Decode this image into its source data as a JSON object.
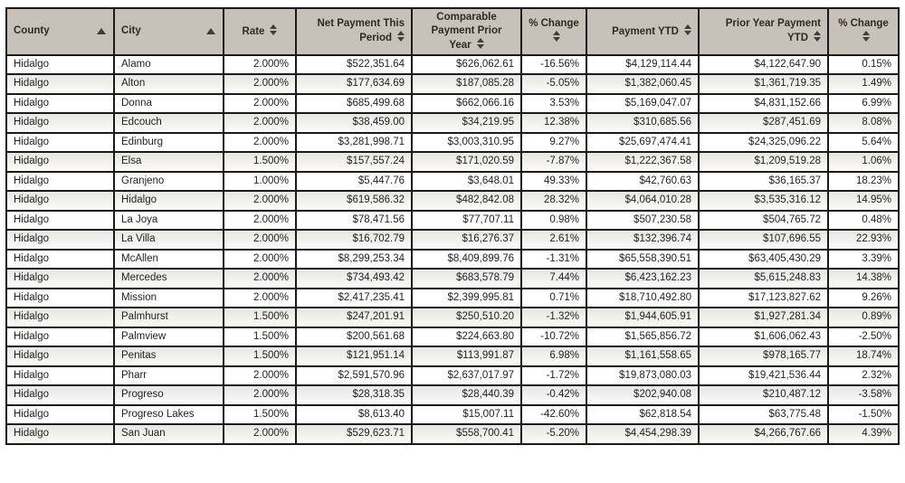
{
  "colors": {
    "header_bg": "#c8c1b9",
    "border": "#1a1a1a",
    "header_text": "#2d2a25",
    "cell_text": "#1f1f1f",
    "alt_row_top": "#e9e6e2",
    "alt_row_bottom": "#f8f7f5",
    "sort_icon": "#3c3c3c",
    "page_bg": "#ffffff"
  },
  "table": {
    "columns": [
      {
        "id": "county",
        "label": "County",
        "sort": "asc"
      },
      {
        "id": "city",
        "label": "City",
        "sort": "asc"
      },
      {
        "id": "rate",
        "label": "Rate",
        "sort": "both"
      },
      {
        "id": "net-payment-this-period",
        "label": "Net Payment This Period",
        "sort": "both"
      },
      {
        "id": "comparable-payment-prior-year",
        "label": "Comparable Payment Prior Year",
        "sort": "both"
      },
      {
        "id": "pct-change-period",
        "label": "% Change",
        "sort": "both"
      },
      {
        "id": "payment-ytd",
        "label": "Payment YTD",
        "sort": "both"
      },
      {
        "id": "prior-year-payment-ytd",
        "label": "Prior Year Payment YTD",
        "sort": "both"
      },
      {
        "id": "pct-change-ytd",
        "label": "% Change",
        "sort": "both"
      }
    ],
    "rows": [
      [
        "Hidalgo",
        "Alamo",
        "2.000%",
        "$522,351.64",
        "$626,062.61",
        "-16.56%",
        "$4,129,114.44",
        "$4,122,647.90",
        "0.15%"
      ],
      [
        "Hidalgo",
        "Alton",
        "2.000%",
        "$177,634.69",
        "$187,085.28",
        "-5.05%",
        "$1,382,060.45",
        "$1,361,719.35",
        "1.49%"
      ],
      [
        "Hidalgo",
        "Donna",
        "2.000%",
        "$685,499.68",
        "$662,066.16",
        "3.53%",
        "$5,169,047.07",
        "$4,831,152.66",
        "6.99%"
      ],
      [
        "Hidalgo",
        "Edcouch",
        "2.000%",
        "$38,459.00",
        "$34,219.95",
        "12.38%",
        "$310,685.56",
        "$287,451.69",
        "8.08%"
      ],
      [
        "Hidalgo",
        "Edinburg",
        "2.000%",
        "$3,281,998.71",
        "$3,003,310.95",
        "9.27%",
        "$25,697,474.41",
        "$24,325,096.22",
        "5.64%"
      ],
      [
        "Hidalgo",
        "Elsa",
        "1.500%",
        "$157,557.24",
        "$171,020.59",
        "-7.87%",
        "$1,222,367.58",
        "$1,209,519.28",
        "1.06%"
      ],
      [
        "Hidalgo",
        "Granjeno",
        "1.000%",
        "$5,447.76",
        "$3,648.01",
        "49.33%",
        "$42,760.63",
        "$36,165.37",
        "18.23%"
      ],
      [
        "Hidalgo",
        "Hidalgo",
        "2.000%",
        "$619,586.32",
        "$482,842.08",
        "28.32%",
        "$4,064,010.28",
        "$3,535,316.12",
        "14.95%"
      ],
      [
        "Hidalgo",
        "La Joya",
        "2.000%",
        "$78,471.56",
        "$77,707.11",
        "0.98%",
        "$507,230.58",
        "$504,765.72",
        "0.48%"
      ],
      [
        "Hidalgo",
        "La Villa",
        "2.000%",
        "$16,702.79",
        "$16,276.37",
        "2.61%",
        "$132,396.74",
        "$107,696.55",
        "22.93%"
      ],
      [
        "Hidalgo",
        "McAllen",
        "2.000%",
        "$8,299,253.34",
        "$8,409,899.76",
        "-1.31%",
        "$65,558,390.51",
        "$63,405,430.29",
        "3.39%"
      ],
      [
        "Hidalgo",
        "Mercedes",
        "2.000%",
        "$734,493.42",
        "$683,578.79",
        "7.44%",
        "$6,423,162.23",
        "$5,615,248.83",
        "14.38%"
      ],
      [
        "Hidalgo",
        "Mission",
        "2.000%",
        "$2,417,235.41",
        "$2,399,995.81",
        "0.71%",
        "$18,710,492.80",
        "$17,123,827.62",
        "9.26%"
      ],
      [
        "Hidalgo",
        "Palmhurst",
        "1.500%",
        "$247,201.91",
        "$250,510.20",
        "-1.32%",
        "$1,944,605.91",
        "$1,927,281.34",
        "0.89%"
      ],
      [
        "Hidalgo",
        "Palmview",
        "1.500%",
        "$200,561.68",
        "$224,663.80",
        "-10.72%",
        "$1,565,856.72",
        "$1,606,062.43",
        "-2.50%"
      ],
      [
        "Hidalgo",
        "Penitas",
        "1.500%",
        "$121,951.14",
        "$113,991.87",
        "6.98%",
        "$1,161,558.65",
        "$978,165.77",
        "18.74%"
      ],
      [
        "Hidalgo",
        "Pharr",
        "2.000%",
        "$2,591,570.96",
        "$2,637,017.97",
        "-1.72%",
        "$19,873,080.03",
        "$19,421,536.44",
        "2.32%"
      ],
      [
        "Hidalgo",
        "Progreso",
        "2.000%",
        "$28,318.35",
        "$28,440.39",
        "-0.42%",
        "$202,940.08",
        "$210,487.12",
        "-3.58%"
      ],
      [
        "Hidalgo",
        "Progreso Lakes",
        "1.500%",
        "$8,613.40",
        "$15,007.11",
        "-42.60%",
        "$62,818.54",
        "$63,775.48",
        "-1.50%"
      ],
      [
        "Hidalgo",
        "San Juan",
        "2.000%",
        "$529,623.71",
        "$558,700.41",
        "-5.20%",
        "$4,454,298.39",
        "$4,266,767.66",
        "4.39%"
      ]
    ]
  }
}
